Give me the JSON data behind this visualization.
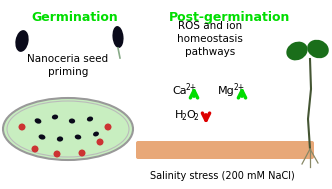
{
  "bg_color": "#ffffff",
  "title_germination": "Germination",
  "title_postgerm": "Post-germination",
  "label_nanoceria": "Nanoceria seed\npriming",
  "label_ros": "ROS and ion\nhomeostasis\npathways",
  "label_ca": "Ca",
  "label_ca_sup": "2+",
  "label_mg": "Mg",
  "label_mg_sup": "2+",
  "label_h2o2_main": "H",
  "label_h2o2_sub": "2",
  "label_h2o2_end": "O",
  "label_h2o2_sub2": "2",
  "label_salinity": "Salinity stress (200 mM NaCl)",
  "green_color": "#00dd00",
  "red_color": "#dd0000",
  "bar_color": "#e8a878",
  "seed_color": "#0a0a1a",
  "dish_fill": "#c8eec0",
  "dish_edge": "#999999",
  "seedling_green": "#1a6e1a",
  "stem_color": "#445533"
}
